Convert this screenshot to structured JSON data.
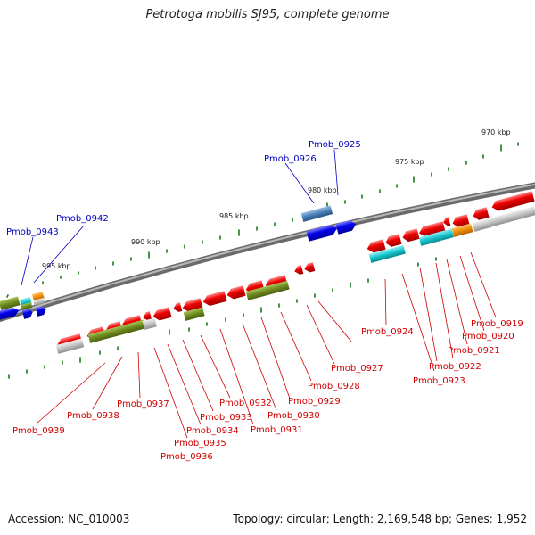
{
  "title": "Petrotoga mobilis SJ95, complete genome",
  "footer": {
    "accession": "Accession: NC_010003",
    "topology": "Topology: circular; Length: 2,169,548 bp; Genes: 1,952"
  },
  "kbp_labels": [
    "970 kbp",
    "975 kbp",
    "980 kbp",
    "985 kbp",
    "990 kbp",
    "995 kbp"
  ],
  "genes_lower_strand": [
    "Pmob_0919",
    "Pmob_0920",
    "Pmob_0921",
    "Pmob_0922",
    "Pmob_0923",
    "Pmob_0924",
    "Pmob_0927",
    "Pmob_0928",
    "Pmob_0929",
    "Pmob_0930",
    "Pmob_0931",
    "Pmob_0932",
    "Pmob_0933",
    "Pmob_0934",
    "Pmob_0935",
    "Pmob_0936",
    "Pmob_0937",
    "Pmob_0938",
    "Pmob_0939"
  ],
  "genes_upper_strand": [
    "Pmob_0925",
    "Pmob_0926",
    "Pmob_0942",
    "Pmob_0943"
  ],
  "colors": {
    "backbone": "#8a8a8a",
    "red_gene": "#ee0000",
    "blue_gene": "#0000ee",
    "steel_gene": "#4a7fb5",
    "olive_cog": "#6e8b1f",
    "cyan_cog": "#17c3cc",
    "orange_cog": "#f08c00",
    "gray_cog": "#bdbdbd",
    "tick": "#1a7a1a"
  }
}
